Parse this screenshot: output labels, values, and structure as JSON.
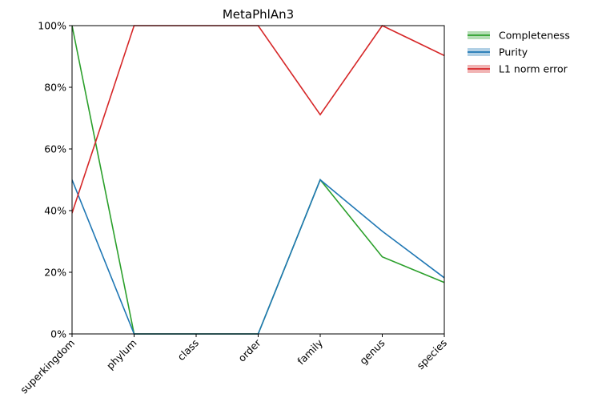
{
  "chart_data": {
    "type": "line",
    "title": "MetaPhlAn3",
    "xlabel": "",
    "ylabel": "",
    "categories": [
      "superkingdom",
      "phylum",
      "class",
      "order",
      "family",
      "genus",
      "species"
    ],
    "ylim": [
      0,
      100
    ],
    "yticks": [
      "0%",
      "20%",
      "40%",
      "60%",
      "80%",
      "100%"
    ],
    "grid": false,
    "legend_position": "outside-top-right",
    "series": [
      {
        "name": "Completeness",
        "color": "#2ca02c",
        "values": [
          100,
          0,
          0,
          0,
          50,
          25,
          16.7
        ]
      },
      {
        "name": "Purity",
        "color": "#1f77b4",
        "values": [
          50,
          0,
          0,
          0,
          50,
          33.3,
          18.2
        ]
      },
      {
        "name": "L1 norm error",
        "color": "#d62728",
        "values": [
          39.2,
          100,
          100,
          100,
          71.1,
          100,
          90.3
        ]
      }
    ]
  }
}
